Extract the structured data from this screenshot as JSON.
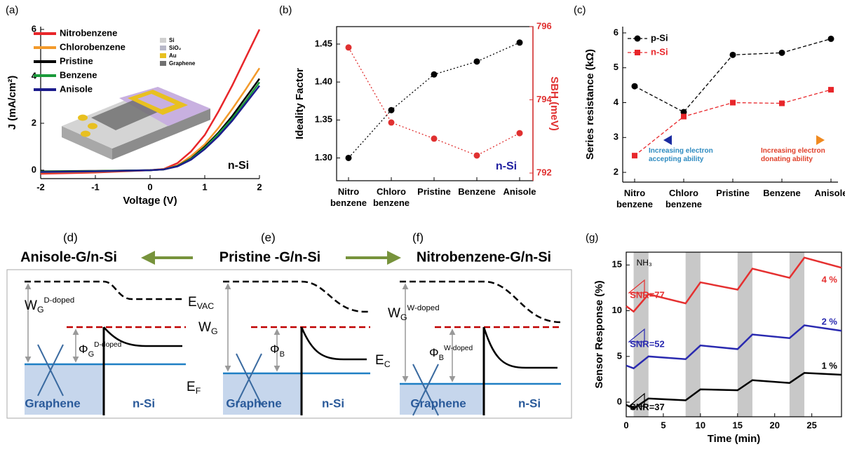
{
  "chart_data": [
    {
      "type": "line",
      "panel": "(a)",
      "xlabel": "Voltage (V)",
      "ylabel": "J (mA/cm²)",
      "x": [
        -2,
        -1,
        0,
        0.25,
        0.5,
        0.75,
        1,
        1.25,
        1.5,
        1.75,
        2
      ],
      "xlim": [
        -2,
        2
      ],
      "xticks": [
        -2,
        -1,
        0,
        1,
        2
      ],
      "ylim": [
        -0.36,
        6.12
      ],
      "yticks": [
        0,
        2,
        4,
        6
      ],
      "legend": "upper left",
      "series": [
        {
          "name": "Nitrobenzene",
          "color": "#e8262a",
          "values": [
            -0.15,
            -0.1,
            0,
            0.05,
            0.3,
            0.8,
            1.5,
            2.5,
            3.6,
            4.8,
            6.0
          ]
        },
        {
          "name": "Chlorobenzene",
          "color": "#f39a2b",
          "values": [
            -0.1,
            -0.07,
            0,
            0.04,
            0.2,
            0.6,
            1.1,
            1.8,
            2.6,
            3.45,
            4.35
          ]
        },
        {
          "name": "Pristine",
          "color": "#000000",
          "values": [
            -0.05,
            -0.03,
            0,
            0.03,
            0.18,
            0.5,
            1.0,
            1.6,
            2.3,
            3.1,
            3.9
          ]
        },
        {
          "name": "Benzene",
          "color": "#1a9a3a",
          "values": [
            -0.06,
            -0.04,
            0,
            0.03,
            0.17,
            0.48,
            0.95,
            1.55,
            2.2,
            2.95,
            3.75
          ]
        },
        {
          "name": "Anisole",
          "color": "#1c1c8c",
          "values": [
            -0.08,
            -0.05,
            0,
            0.03,
            0.16,
            0.45,
            0.9,
            1.45,
            2.1,
            2.85,
            3.6
          ]
        }
      ],
      "annotations": [
        {
          "text": "n-Si",
          "color": "#000000"
        }
      ],
      "inset_legend": [
        {
          "label": "Si",
          "color": "#d0d0d0"
        },
        {
          "label": "SiO₂",
          "color": "#b8b8c8"
        },
        {
          "label": "Au",
          "color": "#e8c020"
        },
        {
          "label": "Graphene",
          "color": "#707070"
        }
      ]
    },
    {
      "type": "line",
      "panel": "(b)",
      "ylabel": "Ideality Factor",
      "y2label": "SBH (meV)",
      "categories": [
        "Nitro benzene",
        "Chloro benzene",
        "Pristine",
        "Benzene",
        "Anisole"
      ],
      "ylim": [
        1.27,
        1.473
      ],
      "yticks": [
        {
          "value": 1.3,
          "label": "1.30"
        },
        {
          "value": 1.35,
          "label": "1.35"
        },
        {
          "value": 1.4,
          "label": "1.40"
        },
        {
          "value": 1.45,
          "label": "1.45"
        }
      ],
      "y2lim": [
        791.79,
        796
      ],
      "y2ticks": [
        792,
        794,
        796
      ],
      "y2color": "#e03030",
      "series": [
        {
          "color": "#000000",
          "line_style": "dotted",
          "marker": "circle",
          "values": [
            1.3,
            1.363,
            1.41,
            1.427,
            1.452
          ]
        },
        {
          "axis": "y2",
          "color": "#e03030",
          "line_style": "dotted",
          "marker": "circle",
          "values": [
            795.43,
            793.38,
            792.94,
            792.48,
            793.09
          ]
        }
      ],
      "annotations": [
        {
          "text": "n-Si",
          "color": "#2020a0"
        }
      ]
    },
    {
      "type": "line",
      "panel": "(c)",
      "ylabel": "Series resistance (kΩ)",
      "categories": [
        "Nitro benzene",
        "Chloro benzene",
        "Pristine",
        "Benzene",
        "Anisole"
      ],
      "ylim": [
        1.72,
        6.18
      ],
      "yticks": [
        2,
        3,
        4,
        5,
        6
      ],
      "legend": "upper left",
      "series": [
        {
          "name": "p-Si",
          "color": "#000000",
          "line_style": "dashed",
          "marker": "circle",
          "values": [
            4.47,
            3.73,
            5.37,
            5.43,
            5.83
          ]
        },
        {
          "name": "n-Si",
          "color": "#e8262a",
          "line_style": "dashed",
          "marker": "square",
          "values": [
            2.48,
            3.6,
            4.0,
            3.98,
            4.37
          ]
        }
      ],
      "annotations": [
        {
          "text": "Increasing electron accepting ability",
          "color": "#2e8bc0"
        },
        {
          "text": "Increasing electron donating ability",
          "color": "#e0402a"
        }
      ]
    },
    {
      "type": "line",
      "panel": "(g)",
      "xlabel": "Time (min)",
      "ylabel": "Sensor Response (%)",
      "x": [
        0,
        1,
        3,
        8,
        10,
        15,
        17,
        22,
        24,
        29
      ],
      "xlim": [
        0,
        29
      ],
      "xticks": [
        0,
        5,
        10,
        15,
        20,
        25
      ],
      "ylim": [
        -1.6,
        16.4
      ],
      "yticks": [
        0,
        5,
        10,
        15
      ],
      "legend": "right",
      "exposure": [
        [
          1,
          3
        ],
        [
          8,
          10
        ],
        [
          15,
          17
        ],
        [
          22,
          24
        ]
      ],
      "exposure_label": "NH₃",
      "series": [
        {
          "name": "4 %",
          "color": "#e53030",
          "values": [
            10.5,
            9.9,
            11.8,
            10.8,
            13.1,
            12.3,
            14.6,
            13.6,
            15.8,
            14.7
          ]
        },
        {
          "name": "2 %",
          "color": "#2a2ab0",
          "values": [
            4.0,
            3.7,
            5.0,
            4.7,
            6.2,
            5.8,
            7.4,
            7.0,
            8.4,
            7.8
          ]
        },
        {
          "name": "1 %",
          "color": "#000000",
          "values": [
            -0.3,
            -0.7,
            0.4,
            0.2,
            1.4,
            1.3,
            2.4,
            2.1,
            3.2,
            3.0
          ]
        }
      ],
      "annotations": [
        {
          "text": "SNR=77",
          "color": "#e53030"
        },
        {
          "text": "SNR=52",
          "color": "#2a2ab0"
        },
        {
          "text": "SNR=37",
          "color": "#000000"
        }
      ]
    }
  ],
  "diagrams": [
    {
      "panel": "(d)",
      "title": "Anisole-G/n-Si",
      "work_function": {
        "base": "W",
        "sub": "G",
        "sup": "D-doped"
      },
      "barrier": {
        "base": "Φ",
        "sub": "G",
        "sup": "D-doped"
      },
      "left_label": "Graphene",
      "right_label": "n-Si"
    },
    {
      "panel": "(e)",
      "title": "Pristine -G/n-Si",
      "vacuum": {
        "base": "E",
        "sub": "VAC"
      },
      "work_function": {
        "base": "W",
        "sub": "G"
      },
      "barrier": {
        "base": "Φ",
        "sub": "B"
      },
      "fermi": {
        "base": "E",
        "sub": "F"
      },
      "conduction": {
        "base": "E",
        "sub": "C"
      },
      "left_label": "Graphene",
      "right_label": "n-Si"
    },
    {
      "panel": "(f)",
      "title": "Nitrobenzene-G/n-Si",
      "work_function": {
        "base": "W",
        "sub": "G",
        "sup": "W-doped"
      },
      "barrier": {
        "base": "Φ",
        "sub": "B",
        "sup": "W-doped"
      },
      "left_label": "Graphene",
      "right_label": "n-Si"
    }
  ]
}
